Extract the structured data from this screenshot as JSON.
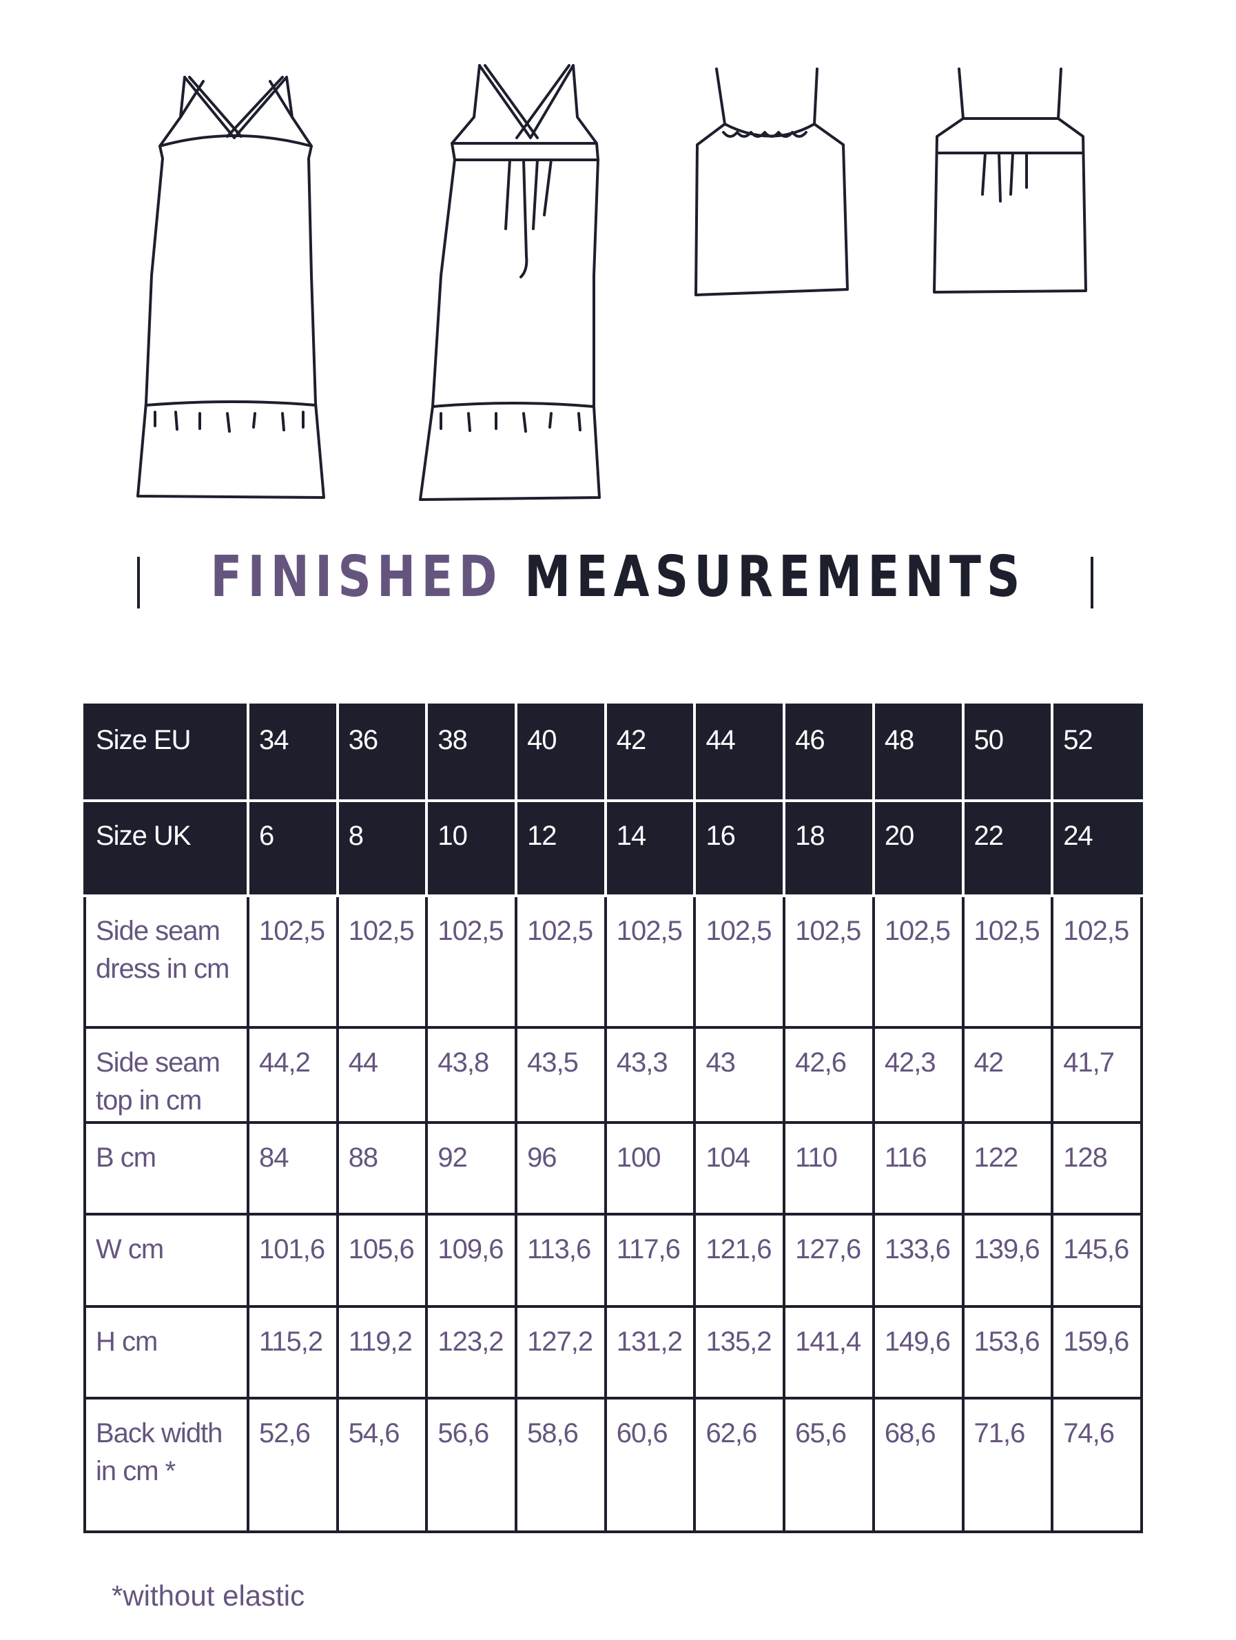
{
  "title": {
    "part1": "FINISHED",
    "part2": "MEASUREMENTS",
    "accent_color": "#65557e",
    "dark_color": "#1d1f2d"
  },
  "illustrations": [
    "dress-front",
    "dress-back",
    "top-front",
    "top-back"
  ],
  "table": {
    "rows": [
      {
        "label": "Size EU",
        "values": [
          "34",
          "36",
          "38",
          "40",
          "42",
          "44",
          "46",
          "48",
          "50",
          "52"
        ],
        "header": true
      },
      {
        "label": "Size UK",
        "values": [
          "6",
          "8",
          "10",
          "12",
          "14",
          "16",
          "18",
          "20",
          "22",
          "24"
        ],
        "header": true
      },
      {
        "label": "Side seam dress in cm",
        "values": [
          "102,5",
          "102,5",
          "102,5",
          "102,5",
          "102,5",
          "102,5",
          "102,5",
          "102,5",
          "102,5",
          "102,5"
        ]
      },
      {
        "label": "Side seam top in cm",
        "values": [
          "44,2",
          "44",
          "43,8",
          "43,5",
          "43,3",
          "43",
          "42,6",
          "42,3",
          "42",
          "41,7"
        ]
      },
      {
        "label": "B cm",
        "values": [
          "84",
          "88",
          "92",
          "96",
          "100",
          "104",
          "110",
          "116",
          "122",
          "128"
        ]
      },
      {
        "label": "W cm",
        "values": [
          "101,6",
          "105,6",
          "109,6",
          "113,6",
          "117,6",
          "121,6",
          "127,6",
          "133,6",
          "139,6",
          "145,6"
        ]
      },
      {
        "label": "H cm",
        "values": [
          "115,2",
          "119,2",
          "123,2",
          "127,2",
          "131,2",
          "135,2",
          "141,4",
          "149,6",
          "153,6",
          "159,6"
        ]
      },
      {
        "label": "Back width in cm *",
        "values": [
          "52,6",
          "54,6",
          "56,6",
          "58,6",
          "60,6",
          "62,6",
          "65,6",
          "68,6",
          "71,6",
          "74,6"
        ]
      }
    ]
  },
  "footnote": "*without elastic"
}
